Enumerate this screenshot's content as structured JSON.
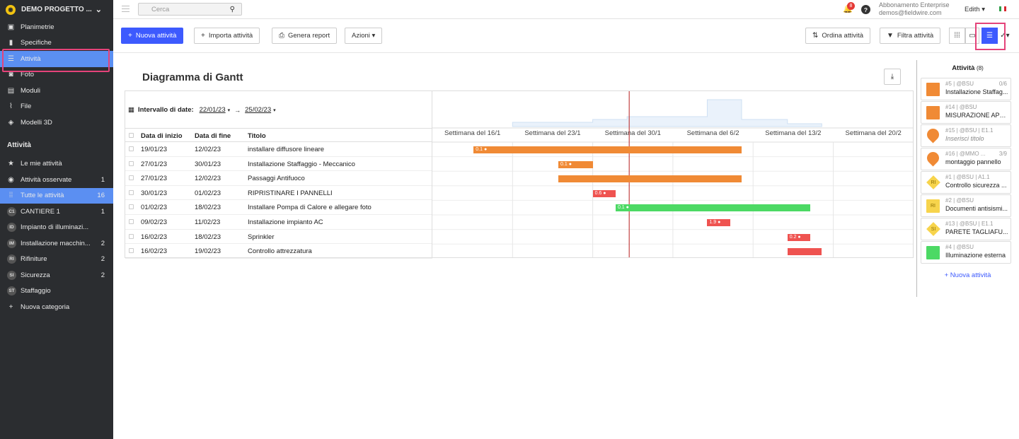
{
  "sidebar": {
    "project_name": "DEMO PROGETTO ...",
    "nav": [
      {
        "label": "Planimetrie",
        "icon": "blueprint-icon"
      },
      {
        "label": "Specifiche",
        "icon": "spec-book-icon"
      },
      {
        "label": "Attività",
        "icon": "list-icon"
      },
      {
        "label": "Foto",
        "icon": "camera-icon"
      },
      {
        "label": "Moduli",
        "icon": "clipboard-icon"
      },
      {
        "label": "File",
        "icon": "paperclip-icon"
      },
      {
        "label": "Modelli 3D",
        "icon": "cube-icon"
      }
    ],
    "section_title": "Attività",
    "task_filters": [
      {
        "label": "Le mie attività",
        "count": "",
        "icon": "star-icon"
      },
      {
        "label": "Attività osservate",
        "count": "1",
        "icon": "eye-icon"
      },
      {
        "label": "Tutte le attività",
        "count": "16",
        "icon": "grid-icon"
      }
    ],
    "categories": [
      {
        "badge": "C1",
        "label": "CANTIERE 1",
        "count": "1"
      },
      {
        "badge": "ID",
        "label": "Impianto di illuminazi...",
        "count": ""
      },
      {
        "badge": "IM",
        "label": "Installazione macchin...",
        "count": "2"
      },
      {
        "badge": "RI",
        "label": "Rifiniture",
        "count": "2"
      },
      {
        "badge": "SI",
        "label": "Sicurezza",
        "count": "2"
      },
      {
        "badge": "ST",
        "label": "Staffaggio",
        "count": ""
      }
    ],
    "new_category": "Nuova categoria"
  },
  "topbar": {
    "search_placeholder": "Cerca",
    "notifications": "8",
    "plan": "Abbonamento Enterprise",
    "email": "demos@fieldwire.com",
    "user": "Edith"
  },
  "toolbar": {
    "new_task": "Nuova attività",
    "import": "Importa attività",
    "report": "Genera report",
    "actions": "Azioni",
    "sort": "Ordina attività",
    "filter": "Filtra attività"
  },
  "gantt": {
    "title": "Diagramma di Gantt",
    "date_range_label": "Intervallo di date:",
    "date_from": "22/01/23",
    "date_to": "25/02/23",
    "headers": {
      "start": "Data di inizio",
      "end": "Data di fine",
      "title": "Titolo"
    },
    "weeks": [
      "Settimana del 16/1",
      "Settimana del 23/1",
      "Settimana del 30/1",
      "Settimana del 6/2",
      "Settimana del 13/2",
      "Settimana del 20/2"
    ],
    "rows": [
      {
        "start": "19/01/23",
        "end": "12/02/23",
        "title": "installare diffusore lineare",
        "label": "0.1",
        "color": "#f08a35"
      },
      {
        "start": "27/01/23",
        "end": "30/01/23",
        "title": "Installazione Staffaggio - Meccanico",
        "label": "0.1",
        "color": "#f08a35"
      },
      {
        "start": "27/01/23",
        "end": "12/02/23",
        "title": "Passaggi Antifuoco",
        "label": "",
        "color": "#f08a35"
      },
      {
        "start": "30/01/23",
        "end": "01/02/23",
        "title": "RIPRISTINARE I PANNELLI",
        "label": "0.6",
        "color": "#ef5350"
      },
      {
        "start": "01/02/23",
        "end": "18/02/23",
        "title": "Installare Pompa di Calore e allegare foto",
        "label": "0.1",
        "color": "#4cd964"
      },
      {
        "start": "09/02/23",
        "end": "11/02/23",
        "title": "Installazione impianto AC",
        "label": "1.9",
        "color": "#ef5350"
      },
      {
        "start": "16/02/23",
        "end": "18/02/23",
        "title": "Sprinkler",
        "label": "0.2",
        "color": "#ef5350"
      },
      {
        "start": "16/02/23",
        "end": "19/02/23",
        "title": "Controllo attrezzatura",
        "label": "",
        "color": "#ef5350"
      }
    ]
  },
  "panel": {
    "title": "Attività",
    "count": "(8)",
    "cards": [
      {
        "meta": "#5 | @BSU",
        "title": "Installazione Staffag...",
        "right": "0/6",
        "shape": "square",
        "color": "#f08a35",
        "badge": "",
        "italic": false
      },
      {
        "meta": "#14 | @BSU",
        "title": "MISURAZIONE APE...",
        "right": "",
        "shape": "square",
        "color": "#f08a35",
        "badge": "",
        "italic": false
      },
      {
        "meta": "#15 | @BSU | E1.1",
        "title": "Inserisci titolo",
        "right": "",
        "shape": "pin",
        "color": "#f08a35",
        "badge": "",
        "italic": true
      },
      {
        "meta": "#16 | @MMO ...",
        "title": "montaggio pannello",
        "right": "3/9",
        "shape": "pin",
        "color": "#f08a35",
        "badge": "",
        "italic": false
      },
      {
        "meta": "#1 | @BSU | A1.1",
        "title": "Controllo sicurezza ...",
        "right": "",
        "shape": "diamond",
        "color": "#f7d44c",
        "badge": "RI",
        "italic": false
      },
      {
        "meta": "#2 | @BSU",
        "title": "Documenti antisismi...",
        "right": "",
        "shape": "square",
        "color": "#f7d44c",
        "badge": "RI",
        "italic": false
      },
      {
        "meta": "#13 | @BSU | E1.1",
        "title": "PARETE TAGLIAFU...",
        "right": "",
        "shape": "diamond",
        "color": "#f7d44c",
        "badge": "SI",
        "italic": false
      },
      {
        "meta": "#4 | @BSU",
        "title": "Illuminazione esterna",
        "right": "",
        "shape": "square",
        "color": "#4cd964",
        "badge": "",
        "italic": false
      }
    ],
    "add_task": "+ Nuova attività"
  }
}
